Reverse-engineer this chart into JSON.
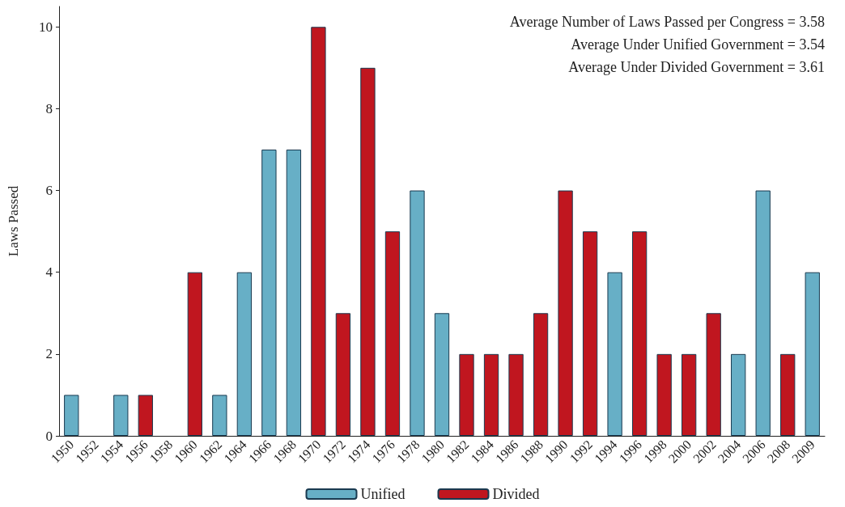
{
  "chart_data": {
    "type": "bar",
    "ylabel": "Laws Passed",
    "categories": [
      "1950",
      "1952",
      "1954",
      "1956",
      "1958",
      "1960",
      "1962",
      "1964",
      "1966",
      "1968",
      "1970",
      "1972",
      "1974",
      "1976",
      "1978",
      "1980",
      "1982",
      "1984",
      "1986",
      "1988",
      "1990",
      "1992",
      "1994",
      "1996",
      "1998",
      "2000",
      "2002",
      "2004",
      "2006",
      "2008",
      "2009"
    ],
    "series": [
      {
        "name": "Unified",
        "color": "#67afc6",
        "values": [
          1,
          null,
          1,
          null,
          null,
          null,
          1,
          4,
          7,
          7,
          null,
          null,
          null,
          null,
          6,
          3,
          null,
          null,
          null,
          null,
          null,
          null,
          4,
          null,
          null,
          null,
          null,
          2,
          6,
          null,
          4
        ]
      },
      {
        "name": "Divided",
        "color": "#c0161f",
        "values": [
          null,
          null,
          null,
          1,
          null,
          4,
          null,
          null,
          null,
          null,
          10,
          3,
          9,
          5,
          null,
          null,
          2,
          2,
          2,
          3,
          6,
          5,
          null,
          5,
          2,
          2,
          3,
          null,
          null,
          2,
          null
        ]
      }
    ],
    "ylim": [
      0,
      10.5
    ],
    "yticks": [
      0,
      2,
      4,
      6,
      8,
      10
    ],
    "grid": false,
    "legend": "bottom",
    "annotations": [
      "Average Number of Laws Passed per Congress = 3.58",
      "Average Under Unified Government = 3.54",
      "Average Under Divided Government = 3.61"
    ]
  }
}
